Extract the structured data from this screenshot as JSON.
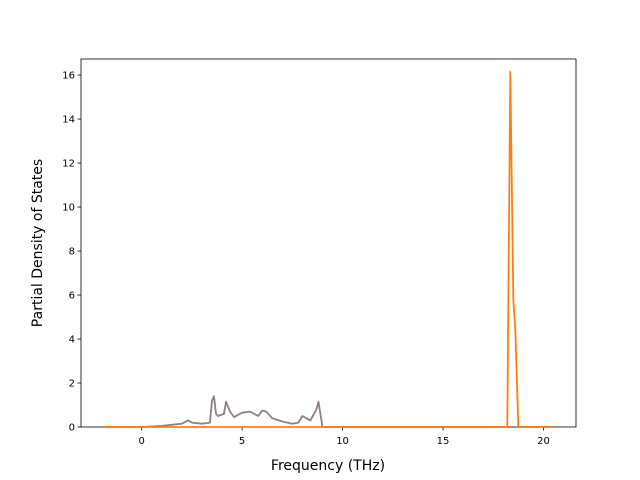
{
  "chart_data": {
    "type": "line",
    "xlabel": "Frequency (THz)",
    "ylabel": "Partial Density of States",
    "x": [
      -1.9,
      0,
      1,
      2,
      2.3,
      2.5,
      3,
      3.4,
      3.5,
      3.6,
      3.7,
      3.8,
      4.1,
      4.2,
      4.4,
      4.6,
      5,
      5.4,
      5.8,
      6,
      6.2,
      6.5,
      7,
      7.5,
      7.8,
      8,
      8.4,
      8.7,
      8.8,
      9,
      18.2,
      18.35,
      18.5,
      18.6,
      18.75,
      20.5
    ],
    "series": [
      {
        "color": "#8e7f88",
        "values": [
          0,
          0,
          0.05,
          0.15,
          0.3,
          0.2,
          0.15,
          0.2,
          1.2,
          1.4,
          0.6,
          0.5,
          0.6,
          1.15,
          0.7,
          0.45,
          0.65,
          0.7,
          0.5,
          0.75,
          0.7,
          0.4,
          0.25,
          0.15,
          0.2,
          0.5,
          0.3,
          0.8,
          1.15,
          0,
          0,
          0,
          0,
          0,
          0,
          0
        ]
      },
      {
        "color": "#ff7f0e",
        "values": [
          0,
          0,
          0,
          0,
          0,
          0,
          0,
          0,
          0,
          0,
          0,
          0,
          0,
          0,
          0,
          0,
          0,
          0,
          0,
          0,
          0,
          0,
          0,
          0,
          0,
          0,
          0,
          0,
          0,
          0,
          0,
          16.15,
          5.8,
          4.4,
          0,
          0
        ]
      }
    ],
    "xlim": [
      -3.02,
      21.62
    ],
    "xticks": [
      0,
      5,
      10,
      15,
      20
    ],
    "ylim": [
      0,
      16.73
    ],
    "yticks": [
      0,
      2,
      4,
      6,
      8,
      10,
      12,
      14,
      16
    ]
  }
}
